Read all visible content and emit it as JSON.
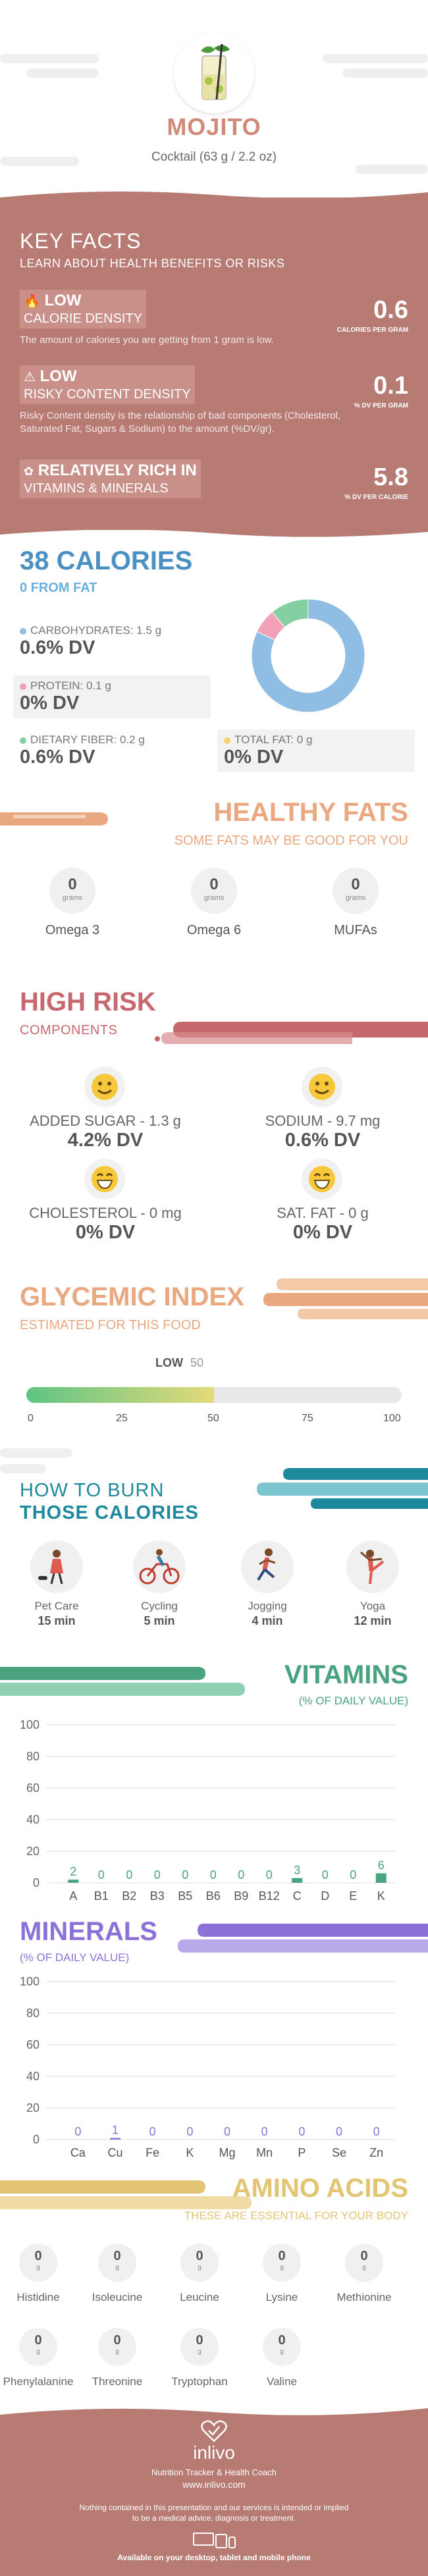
{
  "header": {
    "title": "MOJITO",
    "subtitle": "Cocktail (63 g / 2.2 oz)"
  },
  "key_facts": {
    "title": "KEY FACTS",
    "subtitle": "LEARN ABOUT HEALTH BENEFITS OR RISKS",
    "items": [
      {
        "level": "LOW",
        "label": "CALORIE DENSITY",
        "desc": "The amount of calories you are getting from 1 gram is low.",
        "value": "0.6",
        "unit": "CALORIES PER GRAM",
        "icon": "flame-icon"
      },
      {
        "level": "LOW",
        "label": "RISKY CONTENT DENSITY",
        "desc": "Risky Content density is the relationship of bad components (Cholesterol, Saturated Fat, Sugars & Sodium) to the amount (%DV/gr).",
        "value": "0.1",
        "unit": "% DV PER GRAM",
        "icon": "warning-icon"
      },
      {
        "level": "RELATIVELY RICH  IN",
        "label": "VITAMINS & MINERALS",
        "desc": "",
        "value": "5.8",
        "unit": "% DV PER CALORIE",
        "icon": "leaf-icon"
      }
    ]
  },
  "calories": {
    "title": "38 CALORIES",
    "subtitle": "0 FROM FAT",
    "carbs_label": "CARBOHYDRATES: 1.5 g",
    "carbs_dv": "0.6% DV",
    "protein_label": "PROTEIN: 0.1 g",
    "protein_dv": "0% DV",
    "fiber_label": "DIETARY FIBER: 0.2 g",
    "fiber_dv": "0.6% DV",
    "fat_label": "TOTAL FAT: 0 g",
    "fat_dv": "0% DV",
    "donut": [
      {
        "name": "carbohydrates",
        "value": 82,
        "color": "#8fbde3"
      },
      {
        "name": "protein",
        "value": 7,
        "color": "#f2a0b7"
      },
      {
        "name": "fiber",
        "value": 11,
        "color": "#86cfa3"
      }
    ]
  },
  "healthy_fats": {
    "title": "HEALTHY FATS",
    "subtitle": "SOME FATS MAY BE GOOD FOR YOU",
    "unit": "grams",
    "items": [
      {
        "name": "Omega 3",
        "value": "0"
      },
      {
        "name": "Omega 6",
        "value": "0"
      },
      {
        "name": "MUFAs",
        "value": "0"
      }
    ]
  },
  "high_risk": {
    "title": "HIGH RISK",
    "subtitle": "COMPONENTS",
    "items": [
      {
        "label": "ADDED SUGAR - 1.3 g",
        "dv": "4.2% DV",
        "icon": "smiley-icon"
      },
      {
        "label": "SODIUM - 9.7 mg",
        "dv": "0.6% DV",
        "icon": "smiley-icon"
      },
      {
        "label": "CHOLESTEROL - 0 mg",
        "dv": "0% DV",
        "icon": "grin-icon"
      },
      {
        "label": "SAT. FAT - 0 g",
        "dv": "0% DV",
        "icon": "grin-icon"
      }
    ]
  },
  "glycemic": {
    "title": "GLYCEMIC INDEX",
    "subtitle": "ESTIMATED FOR THIS FOOD",
    "level": "LOW",
    "value": "50",
    "value_num": 50,
    "ticks": [
      "0",
      "25",
      "50",
      "75",
      "100"
    ]
  },
  "burn": {
    "title_line1": "HOW TO BURN",
    "title_line2": "THOSE CALORIES",
    "activities": [
      {
        "name": "Pet Care",
        "time": "15 min",
        "icon": "dog-walk-icon"
      },
      {
        "name": "Cycling",
        "time": "5 min",
        "icon": "cycling-icon"
      },
      {
        "name": "Jogging",
        "time": "4 min",
        "icon": "jogging-icon"
      },
      {
        "name": "Yoga",
        "time": "12 min",
        "icon": "yoga-icon"
      }
    ]
  },
  "vitamins": {
    "title": "VITAMINS",
    "subtitle": "(% OF DAILY VALUE)",
    "color": "#4aa37f",
    "chart_data": {
      "type": "bar",
      "categories": [
        "A",
        "B1",
        "B2",
        "B3",
        "B5",
        "B6",
        "B9",
        "B12",
        "C",
        "D",
        "E",
        "K"
      ],
      "values": [
        2,
        0,
        0,
        0,
        0,
        0,
        0,
        0,
        3,
        0,
        0,
        6
      ],
      "ylim": [
        0,
        100
      ],
      "yticks": [
        "0",
        "20",
        "40",
        "60",
        "80",
        "100"
      ]
    }
  },
  "minerals": {
    "title": "MINERALS",
    "subtitle": "(% OF DAILY VALUE)",
    "color": "#8c72d6",
    "chart_data": {
      "type": "bar",
      "categories": [
        "Ca",
        "Cu",
        "Fe",
        "K",
        "Mg",
        "Mn",
        "P",
        "Se",
        "Zn"
      ],
      "values": [
        0,
        1,
        0,
        0,
        0,
        0,
        0,
        0,
        0
      ],
      "ylim": [
        0,
        100
      ],
      "yticks": [
        "0",
        "20",
        "40",
        "60",
        "80",
        "100"
      ]
    }
  },
  "amino": {
    "title": "AMINO ACIDS",
    "subtitle": "THESE ARE ESSENTIAL FOR YOUR BODY",
    "unit": "g",
    "items": [
      {
        "name": "Histidine",
        "value": "0"
      },
      {
        "name": "Isoleucine",
        "value": "0"
      },
      {
        "name": "Leucine",
        "value": "0"
      },
      {
        "name": "Lysine",
        "value": "0"
      },
      {
        "name": "Methionine",
        "value": "0"
      },
      {
        "name": "Phenylalanine",
        "value": "0"
      },
      {
        "name": "Threonine",
        "value": "0"
      },
      {
        "name": "Tryptophan",
        "value": "0"
      },
      {
        "name": "Valine",
        "value": "0"
      }
    ]
  },
  "footer": {
    "brand": "inlivo",
    "tagline": "Nutrition Tracker & Health Coach",
    "site": "www.inlivo.com",
    "disclaimer1": "Nothing contained in this presentation and our services is intended or implied",
    "disclaimer2": "to be a medical advice, diagnosis or treatment.",
    "available": "Available on your desktop, tablet and mobile phone"
  }
}
